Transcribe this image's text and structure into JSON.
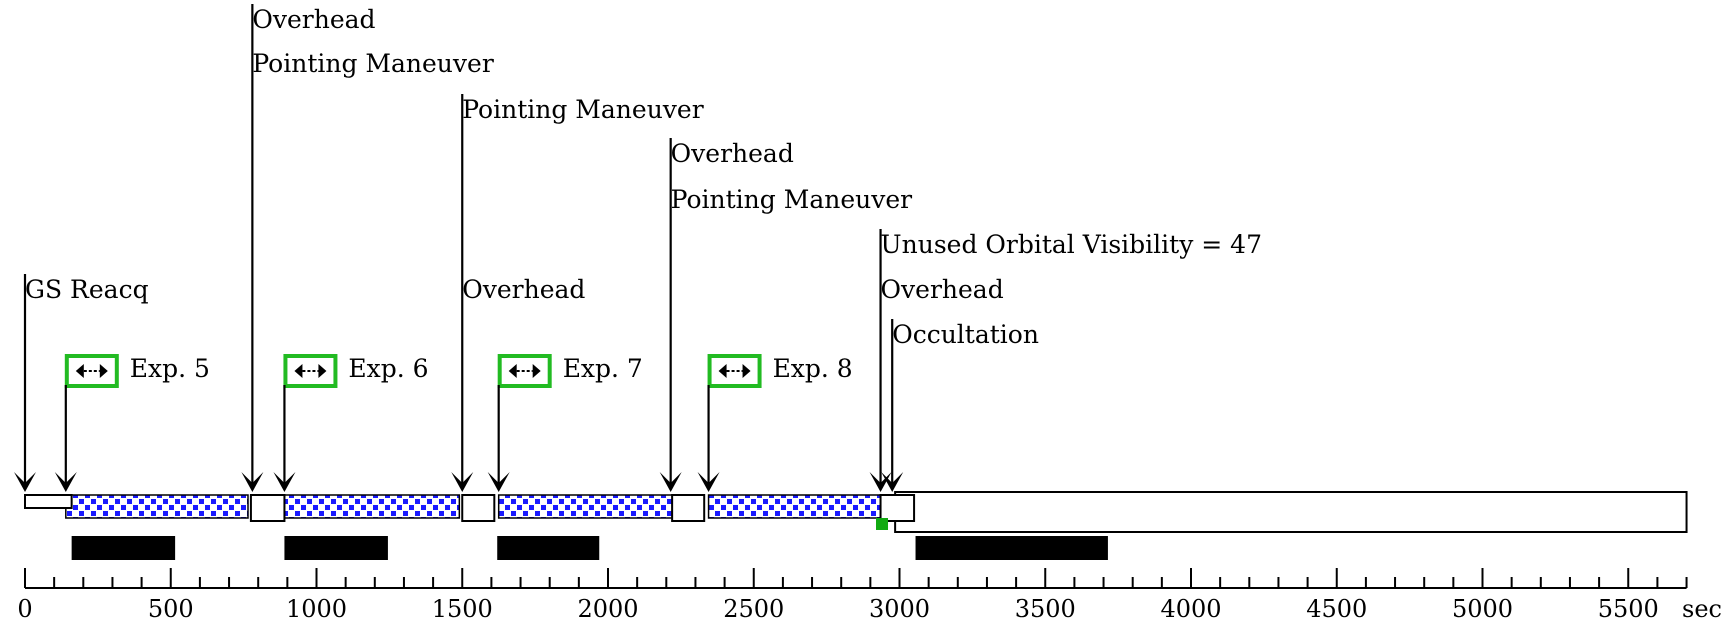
{
  "axis": {
    "min": 0,
    "max": 5700,
    "unit_label": "sec",
    "major_ticks": [
      0,
      500,
      1000,
      1500,
      2000,
      2500,
      3000,
      3500,
      4000,
      4500,
      5000,
      5500
    ],
    "minor_step": 100
  },
  "event_labels": [
    {
      "text": "Overhead",
      "t": 780,
      "level": 0
    },
    {
      "text": "Pointing Maneuver",
      "t": 780,
      "level": 1
    },
    {
      "text": "Pointing Maneuver",
      "t": 1500,
      "level": 2
    },
    {
      "text": "Overhead",
      "t": 2215,
      "level": 3
    },
    {
      "text": "Pointing Maneuver",
      "t": 2215,
      "level": 4
    },
    {
      "text": "Unused Orbital Visibility = 47",
      "t": 2935,
      "level": 5
    },
    {
      "text": "GS Reacq",
      "t": 0,
      "level": 6
    },
    {
      "text": "Overhead",
      "t": 1500,
      "level": 6
    },
    {
      "text": "Overhead",
      "t": 2935,
      "level": 6
    },
    {
      "text": "Occultation",
      "t": 2975,
      "level": 7
    }
  ],
  "exposures": [
    {
      "label": "Exp. 5",
      "start": 140,
      "end": 765
    },
    {
      "label": "Exp. 6",
      "start": 890,
      "end": 1490
    },
    {
      "label": "Exp. 7",
      "start": 1625,
      "end": 2220
    },
    {
      "label": "Exp. 8",
      "start": 2345,
      "end": 2935
    }
  ],
  "overhead_boxes": [
    {
      "start": 0,
      "end": 160,
      "short": true
    },
    {
      "start": 775,
      "end": 890
    },
    {
      "start": 1500,
      "end": 1610
    },
    {
      "start": 2220,
      "end": 2330
    },
    {
      "start": 2935,
      "end": 3050
    }
  ],
  "occultation_box": {
    "start": 2985,
    "end": 5700
  },
  "black_bars": [
    {
      "start": 160,
      "end": 515
    },
    {
      "start": 890,
      "end": 1245
    },
    {
      "start": 1620,
      "end": 1970
    },
    {
      "start": 3055,
      "end": 3715
    }
  ],
  "green_marker": {
    "t": 2940
  },
  "colors": {
    "exposure_dots": "#1a1aff",
    "exposure_icon_border": "#22bb22",
    "green_marker": "#11aa11",
    "bar": "#000000"
  }
}
